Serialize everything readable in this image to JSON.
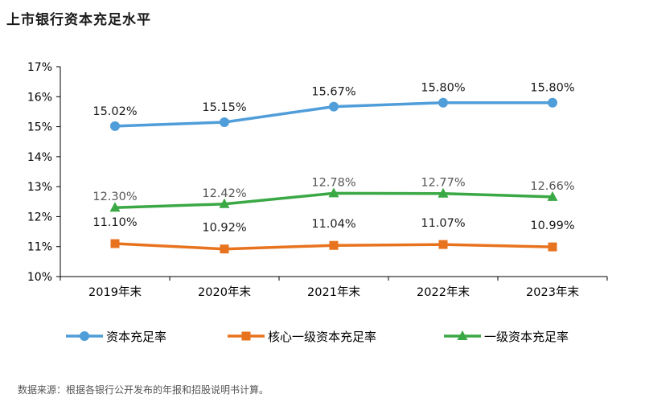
{
  "title": "上市银行资本充足水平",
  "source": "数据来源：根据各银行公开发布的年报和招股说明书计算。",
  "chart_data": {
    "type": "line",
    "categories": [
      "2019年末",
      "2020年末",
      "2021年末",
      "2022年末",
      "2023年末"
    ],
    "ylim": [
      10,
      17
    ],
    "yticks": [
      "10%",
      "11%",
      "12%",
      "13%",
      "14%",
      "15%",
      "16%",
      "17%"
    ],
    "grid": false,
    "legend_position": "bottom",
    "series": [
      {
        "name": "资本充足率",
        "color": "#4f9dd9",
        "marker": "circle",
        "values": [
          15.02,
          15.15,
          15.67,
          15.8,
          15.8
        ],
        "labels": [
          "15.02%",
          "15.15%",
          "15.67%",
          "15.80%",
          "15.80%"
        ],
        "label_color": "#1a1a1a"
      },
      {
        "name": "核心一级资本充足率",
        "color": "#e8731f",
        "marker": "square",
        "values": [
          11.1,
          10.92,
          11.04,
          11.07,
          10.99
        ],
        "labels": [
          "11.10%",
          "10.92%",
          "11.04%",
          "11.07%",
          "10.99%"
        ],
        "label_color": "#1a1a1a"
      },
      {
        "name": "一级资本充足率",
        "color": "#3aa845",
        "marker": "triangle",
        "values": [
          12.3,
          12.42,
          12.78,
          12.77,
          12.66
        ],
        "labels": [
          "12.30%",
          "12.42%",
          "12.78%",
          "12.77%",
          "12.66%"
        ],
        "label_color": "#555555"
      }
    ]
  }
}
